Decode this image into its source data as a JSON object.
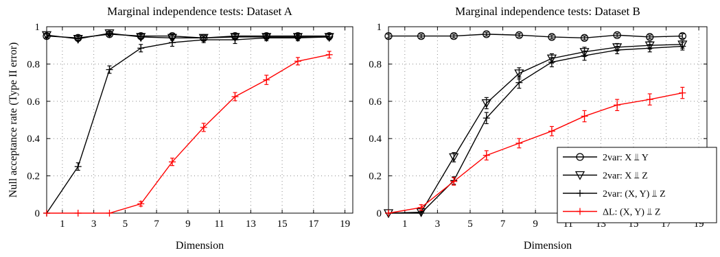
{
  "chart_data": [
    {
      "type": "line",
      "title": "Marginal independence tests: Dataset A",
      "xlabel": "Dimension",
      "ylabel": "Null acceptance rate (Type II error)",
      "xticks": [
        "1",
        "3",
        "5",
        "7",
        "9",
        "11",
        "13",
        "15",
        "17",
        "19"
      ],
      "yticks": [
        "0",
        "0.2",
        "0.4",
        "0.6",
        "0.8",
        "1"
      ],
      "xlim": [
        0,
        19.5
      ],
      "ylim": [
        0,
        1
      ],
      "grid": true,
      "x": [
        0,
        2,
        4,
        6,
        8,
        10,
        12,
        14,
        16,
        18
      ],
      "series": [
        {
          "marker": "circle",
          "color": "#000000",
          "values": [
            0.95,
            0.94,
            0.96,
            0.95,
            0.95,
            0.94,
            0.95,
            0.95,
            0.95,
            0.95
          ],
          "err": [
            0.01,
            0.012,
            0.01,
            0.012,
            0.012,
            0.012,
            0.012,
            0.012,
            0.012,
            0.012
          ]
        },
        {
          "marker": "triangle",
          "color": "#000000",
          "values": [
            0.955,
            0.935,
            0.965,
            0.945,
            0.94,
            0.94,
            0.945,
            0.945,
            0.945,
            0.945
          ],
          "err": [
            0.01,
            0.012,
            0.01,
            0.012,
            0.012,
            0.012,
            0.012,
            0.012,
            0.012,
            0.012
          ]
        },
        {
          "marker": "plus",
          "color": "#000000",
          "values": [
            0.0,
            0.25,
            0.77,
            0.885,
            0.915,
            0.93,
            0.93,
            0.94,
            0.94,
            0.945
          ],
          "err": [
            0.0,
            0.02,
            0.02,
            0.02,
            0.02,
            0.015,
            0.02,
            0.015,
            0.015,
            0.015
          ]
        },
        {
          "marker": "plus",
          "color": "#ff0000",
          "values": [
            0.0,
            0.0,
            0.0,
            0.05,
            0.275,
            0.46,
            0.625,
            0.715,
            0.815,
            0.85
          ],
          "err": [
            0.0,
            0.0,
            0.0,
            0.012,
            0.02,
            0.022,
            0.022,
            0.025,
            0.02,
            0.018
          ]
        }
      ]
    },
    {
      "type": "line",
      "title": "Marginal independence tests: Dataset B",
      "xlabel": "Dimension",
      "ylabel": "",
      "xticks": [
        "1",
        "3",
        "5",
        "7",
        "9",
        "11",
        "13",
        "15",
        "17",
        "19"
      ],
      "yticks": [
        "0",
        "0.2",
        "0.4",
        "0.6",
        "0.8",
        "1"
      ],
      "xlim": [
        0,
        19.5
      ],
      "ylim": [
        0,
        1
      ],
      "grid": true,
      "legend_position": "lower-right",
      "legend": [
        "2var: X ⫫ Y",
        "2var: X ⫫ Z",
        "2var: (X, Y) ⫫ Z",
        "ΔL: (X, Y) ⫫ Z"
      ],
      "x": [
        0,
        2,
        4,
        6,
        8,
        10,
        12,
        14,
        16,
        18
      ],
      "series": [
        {
          "marker": "circle",
          "color": "#000000",
          "values": [
            0.95,
            0.95,
            0.95,
            0.96,
            0.955,
            0.945,
            0.94,
            0.955,
            0.945,
            0.95
          ],
          "err": [
            0.01,
            0.01,
            0.01,
            0.01,
            0.01,
            0.01,
            0.01,
            0.01,
            0.01,
            0.012
          ]
        },
        {
          "marker": "triangle",
          "color": "#000000",
          "values": [
            0.0,
            0.005,
            0.3,
            0.59,
            0.75,
            0.83,
            0.865,
            0.89,
            0.9,
            0.905
          ],
          "err": [
            0.0,
            0.005,
            0.025,
            0.03,
            0.03,
            0.025,
            0.025,
            0.02,
            0.02,
            0.02
          ]
        },
        {
          "marker": "plus",
          "color": "#000000",
          "values": [
            0.0,
            0.0,
            0.175,
            0.51,
            0.7,
            0.81,
            0.845,
            0.875,
            0.885,
            0.895
          ],
          "err": [
            0.0,
            0.0,
            0.02,
            0.03,
            0.03,
            0.025,
            0.025,
            0.02,
            0.02,
            0.02
          ]
        },
        {
          "marker": "plus",
          "color": "#ff0000",
          "values": [
            0.0,
            0.03,
            0.17,
            0.31,
            0.375,
            0.44,
            0.52,
            0.58,
            0.61,
            0.645
          ],
          "err": [
            0.0,
            0.015,
            0.02,
            0.025,
            0.025,
            0.025,
            0.03,
            0.03,
            0.03,
            0.03
          ]
        }
      ]
    }
  ]
}
